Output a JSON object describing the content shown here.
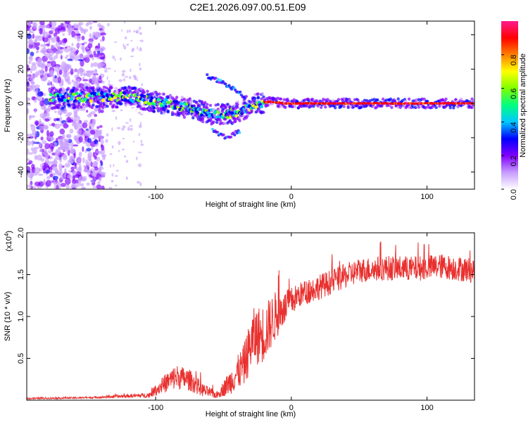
{
  "title": "C2E1.2026.097.00.51.E09",
  "chart_data": [
    {
      "type": "heatmap",
      "name": "spectrogram",
      "xlabel": "Height of straight line (km)",
      "ylabel": "Frequency (Hz)",
      "xlim": [
        -195,
        135
      ],
      "ylim": [
        -50,
        48
      ],
      "xticks": [
        -100,
        0,
        100
      ],
      "xtick_labels": [
        "-100",
        "0",
        "100"
      ],
      "yticks": [
        -40,
        -20,
        0,
        20,
        40
      ],
      "ytick_labels": [
        "-40",
        "-20",
        "0",
        "20",
        "40"
      ],
      "colorbar": {
        "label": "Normalized spectral amplitude",
        "range": [
          0,
          1
        ],
        "ticks": [
          0.0,
          0.2,
          0.4,
          0.6,
          0.8
        ],
        "tick_labels": [
          "0.0",
          "0.2",
          "0.4",
          "0.6",
          "0.8"
        ],
        "colors": [
          "#ffffff",
          "#c79cff",
          "#8000ff",
          "#0000ff",
          "#00c8ff",
          "#00ff80",
          "#80ff00",
          "#ffff00",
          "#ff8000",
          "#ff0000",
          "#ff1a8c"
        ]
      },
      "features": {
        "noise_region_x": [
          -195,
          -138
        ],
        "sparse_noise_x": [
          -138,
          -110
        ],
        "band": {
          "x": [
            -175,
            -120,
            -100,
            -80,
            -60,
            -45,
            -35,
            -25,
            -15,
            -5,
            135
          ],
          "center_y": [
            3,
            4,
            1,
            -2,
            -6,
            -6,
            -4,
            0,
            1,
            0,
            0
          ]
        },
        "side_branch": {
          "x": [
            -62,
            -50,
            -40,
            -33
          ],
          "y": [
            16,
            12,
            7,
            3
          ]
        },
        "lower_branch": {
          "x": [
            -58,
            -48,
            -38
          ],
          "y": [
            -16,
            -20,
            -16
          ]
        }
      }
    },
    {
      "type": "line",
      "name": "snr",
      "xlabel": "Height of straight line (km)",
      "ylabel": "SNR (10 * v/v)",
      "scale_label": "(x10",
      "scale_exponent": "4",
      "xlim": [
        -195,
        135
      ],
      "ylim": [
        0,
        2.0
      ],
      "xticks": [
        -100,
        0,
        100
      ],
      "xtick_labels": [
        "-100",
        "0",
        "100"
      ],
      "yticks": [
        0.5,
        1.0,
        1.5,
        2.0
      ],
      "ytick_labels": [
        "0.5",
        "1.0",
        "1.5",
        "2.0"
      ],
      "color": "#e8312f",
      "envelope": {
        "x": [
          -195,
          -150,
          -120,
          -105,
          -95,
          -85,
          -75,
          -65,
          -55,
          -45,
          -35,
          -28,
          -20,
          -12,
          -5,
          5,
          20,
          35,
          50,
          70,
          90,
          110,
          135
        ],
        "mean": [
          0.02,
          0.03,
          0.05,
          0.06,
          0.18,
          0.28,
          0.24,
          0.12,
          0.06,
          0.22,
          0.42,
          0.75,
          0.8,
          1.0,
          1.1,
          1.25,
          1.35,
          1.45,
          1.55,
          1.58,
          1.57,
          1.6,
          1.55
        ],
        "spread": [
          0.01,
          0.01,
          0.02,
          0.03,
          0.1,
          0.15,
          0.13,
          0.08,
          0.04,
          0.15,
          0.25,
          0.35,
          0.35,
          0.3,
          0.2,
          0.15,
          0.15,
          0.15,
          0.15,
          0.15,
          0.15,
          0.15,
          0.15
        ]
      }
    }
  ]
}
